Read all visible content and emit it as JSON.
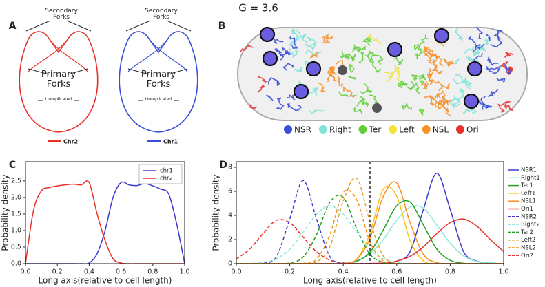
{
  "header": {
    "title": "G = 3.6"
  },
  "panel_a": {
    "label": "A",
    "diagrams": [
      {
        "secondary": "Secondary Forks",
        "primary": "Primary Forks",
        "unreplicated": "Unreplicated",
        "chromosome": "Chr2",
        "color": "#e8312a"
      },
      {
        "secondary": "Secondary Forks",
        "primary": "Primary Forks",
        "unreplicated": "Unreplicated",
        "chromosome": "Chr1",
        "color": "#3a4fd8"
      }
    ]
  },
  "panel_b": {
    "label": "B",
    "legend": [
      {
        "name": "NSR",
        "color": "#3a4fd8"
      },
      {
        "name": "Right",
        "color": "#7fe3d6"
      },
      {
        "name": "Ter",
        "color": "#5fd03a"
      },
      {
        "name": "Left",
        "color": "#f2e23a"
      },
      {
        "name": "NSL",
        "color": "#f5902a"
      },
      {
        "name": "Ori",
        "color": "#e8312a"
      }
    ]
  },
  "chart_data": [
    {
      "type": "line",
      "panel": "C",
      "xlabel": "Long axis(relative to cell length)",
      "ylabel": "Probability density",
      "x": [
        0,
        0.05,
        0.1,
        0.15,
        0.2,
        0.25,
        0.3,
        0.35,
        0.4,
        0.45,
        0.5,
        0.55,
        0.6,
        0.65,
        0.7,
        0.75,
        0.8,
        0.85,
        0.9,
        0.95,
        1.0
      ],
      "series": [
        {
          "name": "chr1",
          "color": "#3a3acf",
          "linestyle": "solid",
          "values": [
            0,
            0,
            0,
            0,
            0,
            0,
            0,
            0,
            0.02,
            0.3,
            1.0,
            2.0,
            2.45,
            2.38,
            2.36,
            2.42,
            2.35,
            2.25,
            2.1,
            1.2,
            0
          ]
        },
        {
          "name": "chr2",
          "color": "#e8312a",
          "linestyle": "solid",
          "values": [
            0,
            1.6,
            2.2,
            2.3,
            2.35,
            2.38,
            2.4,
            2.38,
            2.45,
            1.5,
            0.7,
            0.15,
            0.02,
            0,
            0,
            0,
            0,
            0,
            0,
            0,
            0
          ]
        }
      ],
      "xlim": [
        0,
        1
      ],
      "ylim": [
        0,
        3.08
      ],
      "xticks": [
        {
          "value": 0,
          "label": "0.0"
        },
        {
          "value": 0.2,
          "label": "0.2"
        },
        {
          "value": 0.4,
          "label": "0.4"
        },
        {
          "value": 0.6,
          "label": "0.6"
        },
        {
          "value": 0.8,
          "label": "0.8"
        },
        {
          "value": 1,
          "label": "1.0"
        }
      ],
      "yticks": [
        {
          "value": 0,
          "label": "0.0"
        },
        {
          "value": 0.5,
          "label": "0.5"
        },
        {
          "value": 1,
          "label": "1.0"
        },
        {
          "value": 1.5,
          "label": "1.5"
        },
        {
          "value": 2,
          "label": "2.0"
        },
        {
          "value": 2.5,
          "label": "2.5"
        }
      ],
      "legend": "upper right"
    },
    {
      "type": "line",
      "panel": "D",
      "xlabel": "Long axis(relative to cell length)",
      "ylabel": "Probability density",
      "x": [
        0,
        0.05,
        0.1,
        0.15,
        0.2,
        0.25,
        0.3,
        0.35,
        0.4,
        0.45,
        0.5,
        0.55,
        0.6,
        0.65,
        0.7,
        0.75,
        0.8,
        0.85,
        0.9,
        0.95,
        1.0
      ],
      "series": [
        {
          "name": "NSR1",
          "color": "#3a3acf",
          "linestyle": "solid",
          "values": [
            0,
            0,
            0,
            0,
            0,
            0,
            0,
            0,
            0,
            0,
            0,
            0.05,
            0.2,
            1.0,
            4.5,
            7.5,
            4.5,
            1.0,
            0.2,
            0.05,
            0
          ]
        },
        {
          "name": "Right1",
          "color": "#8ee8e0",
          "linestyle": "solid",
          "values": [
            0,
            0,
            0,
            0,
            0,
            0,
            0,
            0,
            0.05,
            0.24,
            0.8,
            2.0,
            3.6,
            4.7,
            4.6,
            3.2,
            1.7,
            0.65,
            0.18,
            0.04,
            0
          ]
        },
        {
          "name": "Ter1",
          "color": "#22a022",
          "linestyle": "solid",
          "values": [
            0,
            0,
            0,
            0,
            0,
            0,
            0,
            0,
            0,
            0.2,
            0.95,
            2.8,
            4.8,
            5.1,
            3.2,
            1.2,
            0.28,
            0.03,
            0,
            0,
            0
          ]
        },
        {
          "name": "Left1",
          "color": "#f5c518",
          "linestyle": "solid",
          "values": [
            0,
            0,
            0,
            0,
            0,
            0,
            0,
            0,
            0.02,
            0.37,
            2.5,
            6.2,
            5.6,
            1.9,
            0.23,
            0,
            0,
            0,
            0,
            0,
            0
          ]
        },
        {
          "name": "NSL1",
          "color": "#ff8c1a",
          "linestyle": "solid",
          "values": [
            0,
            0,
            0,
            0,
            0,
            0,
            0,
            0,
            0,
            0.34,
            2.1,
            5.6,
            6.7,
            3.4,
            0.77,
            0.08,
            0,
            0,
            0,
            0,
            0
          ]
        },
        {
          "name": "Ori1",
          "color": "#e8312a",
          "linestyle": "solid",
          "values": [
            0,
            0,
            0,
            0,
            0,
            0,
            0,
            0,
            0,
            0,
            0.02,
            0.06,
            0.21,
            0.61,
            1.4,
            2.5,
            3.4,
            3.7,
            3.1,
            2.0,
            1.0
          ]
        },
        {
          "name": "NSR2",
          "color": "#3a3acf",
          "linestyle": "dashed",
          "values": [
            0,
            0,
            0.03,
            0.58,
            3.7,
            6.9,
            3.7,
            0.58,
            0.03,
            0,
            0,
            0,
            0,
            0,
            0,
            0,
            0,
            0,
            0,
            0,
            0
          ]
        },
        {
          "name": "Right2",
          "color": "#8ee8e0",
          "linestyle": "dashed",
          "values": [
            0,
            0.02,
            0.1,
            0.41,
            1.2,
            2.6,
            4.1,
            4.8,
            4.1,
            2.6,
            1.2,
            0.41,
            0.1,
            0.02,
            0,
            0,
            0,
            0,
            0,
            0,
            0
          ]
        },
        {
          "name": "Ter2",
          "color": "#22a022",
          "linestyle": "dashed",
          "values": [
            0,
            0,
            0,
            0,
            0.06,
            0.55,
            2.4,
            5.1,
            5.5,
            2.9,
            0.78,
            0.1,
            0,
            0,
            0,
            0,
            0,
            0,
            0,
            0,
            0
          ]
        },
        {
          "name": "Left2",
          "color": "#daa520",
          "linestyle": "dashed",
          "values": [
            0,
            0,
            0,
            0,
            0,
            0,
            0.14,
            1.4,
            5.2,
            7.1,
            3.5,
            0.64,
            0.04,
            0,
            0,
            0,
            0,
            0,
            0,
            0,
            0
          ]
        },
        {
          "name": "NSL2",
          "color": "#ff8c1a",
          "linestyle": "dashed",
          "values": [
            0,
            0,
            0,
            0,
            0,
            0.02,
            0.36,
            2.4,
            5.9,
            5.3,
            1.8,
            0.22,
            0,
            0,
            0,
            0,
            0,
            0,
            0,
            0,
            0
          ]
        },
        {
          "name": "Ori2",
          "color": "#e8312a",
          "linestyle": "dashed",
          "values": [
            0.39,
            1.2,
            2.5,
            3.6,
            3.4,
            2.2,
            0.99,
            0.29,
            0.06,
            0,
            0,
            0,
            0,
            0,
            0,
            0,
            0,
            0,
            0,
            0,
            0
          ]
        }
      ],
      "xlim": [
        0,
        1
      ],
      "ylim": [
        0,
        8.46
      ],
      "xticks": [
        {
          "value": 0,
          "label": "0.0"
        },
        {
          "value": 0.2,
          "label": "0.2"
        },
        {
          "value": 0.4,
          "label": "0.4"
        },
        {
          "value": 0.6,
          "label": "0.6"
        },
        {
          "value": 0.8,
          "label": "0.8"
        },
        {
          "value": 1,
          "label": "1.0"
        }
      ],
      "yticks": [
        0,
        2,
        4,
        6,
        8
      ],
      "vline": 0.5,
      "legend": "outside right"
    }
  ]
}
